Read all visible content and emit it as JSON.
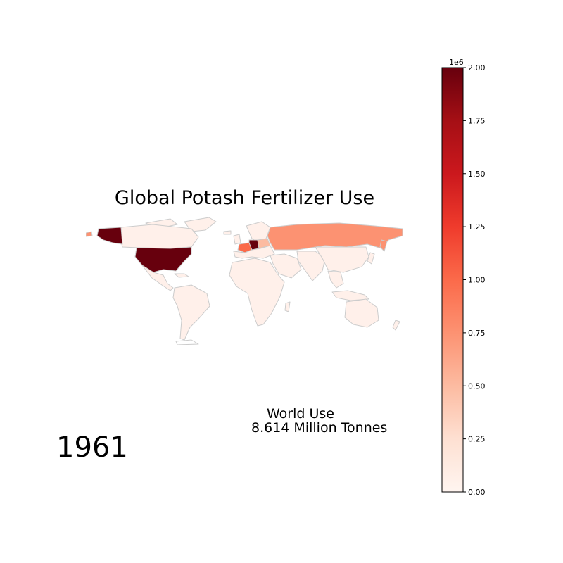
{
  "title": "Global Potash Fertilizer Use",
  "year": "1961",
  "world_use": {
    "label": "World Use",
    "value": "8.614 Million Tonnes"
  },
  "colorbar": {
    "scale_label": "1e6",
    "min": 0,
    "max": 2000000,
    "ticks": [
      "0.00",
      "0.25",
      "0.50",
      "0.75",
      "1.00",
      "1.25",
      "1.50",
      "1.75",
      "2.00"
    ],
    "colormap": "Reds",
    "stops": [
      "#fff5f0",
      "#fee0d2",
      "#fcbba1",
      "#fc9272",
      "#fb6a4a",
      "#ef3b2c",
      "#cb181d",
      "#a50f15",
      "#67000d"
    ]
  },
  "map": {
    "border_color": "#cccccc",
    "background_fill": "#fff0ea"
  },
  "chart_data": {
    "type": "map",
    "title": "Global Potash Fertilizer Use",
    "year": 1961,
    "units": "tonnes",
    "world_total": "8.614 Million Tonnes",
    "color_range": [
      0,
      2000000
    ],
    "highlighted_regions": [
      {
        "name": "United States",
        "approx_value": 2000000
      },
      {
        "name": "Alaska (USA)",
        "approx_value": 2000000
      },
      {
        "name": "Germany",
        "approx_value": 1900000
      },
      {
        "name": "France",
        "approx_value": 900000
      },
      {
        "name": "USSR",
        "approx_value": 600000
      },
      {
        "name": "Poland",
        "approx_value": 300000
      },
      {
        "name": "Other countries",
        "approx_value": 50000
      }
    ]
  }
}
